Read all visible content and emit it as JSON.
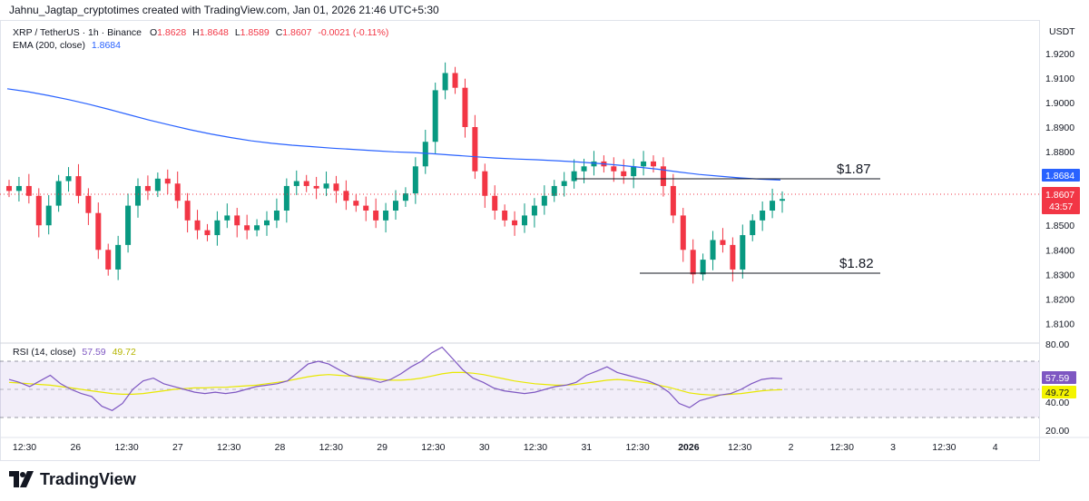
{
  "header": {
    "caption": "Jahnu_Jagtap_cryptotimes created with TradingView.com, Jan 01, 2026 21:46 UTC+5:30"
  },
  "legend": {
    "symbol": "XRP / TetherUS · 1h · Binance",
    "open_label": "O",
    "open": "1.8628",
    "high_label": "H",
    "high": "1.8648",
    "low_label": "L",
    "low": "1.8589",
    "close_label": "C",
    "close": "1.8607",
    "change": "-0.0021 (-0.11%)",
    "ema_label": "EMA (200, close)",
    "ema_value": "1.8684",
    "rsi_label": "RSI (14, close)",
    "rsi_value": "57.59",
    "rsi_ma_value": "49.72"
  },
  "axis": {
    "currency": "USDT",
    "price_ticks": [
      "1.9200",
      "1.9100",
      "1.9000",
      "1.8900",
      "1.8800",
      "1.8500",
      "1.8400",
      "1.8300",
      "1.8200",
      "1.8100"
    ],
    "rsi_ticks": [
      "80.00",
      "40.00",
      "20.00"
    ],
    "time_ticks": [
      "12:30",
      "26",
      "12:30",
      "27",
      "12:30",
      "28",
      "12:30",
      "29",
      "12:30",
      "30",
      "12:30",
      "31",
      "12:30",
      "2026",
      "12:30",
      "2",
      "12:30",
      "3",
      "12:30",
      "4"
    ]
  },
  "badges": {
    "ema_price": "1.8684",
    "last_price": "1.8607",
    "countdown": "43:57",
    "rsi": "57.59",
    "rsi_ma": "49.72"
  },
  "annotations": {
    "resistance_label": "$1.87",
    "support_label": "$1.82"
  },
  "colors": {
    "up": "#089981",
    "down": "#f23645",
    "ema": "#2962ff",
    "rsi": "#7e57c2",
    "rsi_ma": "#e8e800",
    "rsi_band": "#7e57c2"
  },
  "chart_data": {
    "type": "candlestick",
    "title": "XRP / TetherUS · 1h · Binance",
    "ylim": [
      1.805,
      1.924
    ],
    "x_ticks": [
      "12:30",
      "26",
      "12:30",
      "27",
      "12:30",
      "28",
      "12:30",
      "29",
      "12:30",
      "30",
      "12:30",
      "31",
      "12:30",
      "2026",
      "12:30",
      "2",
      "12:30",
      "3",
      "12:30",
      "4"
    ],
    "price_series": [
      1.864,
      1.866,
      1.862,
      1.85,
      1.858,
      1.868,
      1.87,
      1.862,
      1.855,
      1.84,
      1.832,
      1.842,
      1.858,
      1.866,
      1.864,
      1.869,
      1.867,
      1.86,
      1.852,
      1.848,
      1.846,
      1.852,
      1.854,
      1.85,
      1.848,
      1.85,
      1.852,
      1.856,
      1.866,
      1.868,
      1.866,
      1.865,
      1.867,
      1.864,
      1.86,
      1.858,
      1.856,
      1.852,
      1.856,
      1.86,
      1.863,
      1.874,
      1.884,
      1.905,
      1.912,
      1.906,
      1.89,
      1.872,
      1.862,
      1.856,
      1.852,
      1.85,
      1.854,
      1.858,
      1.862,
      1.866,
      1.868,
      1.872,
      1.874,
      1.876,
      1.874,
      1.872,
      1.87,
      1.874,
      1.876,
      1.874,
      1.866,
      1.854,
      1.84,
      1.83,
      1.836,
      1.844,
      1.842,
      1.832,
      1.846,
      1.852,
      1.856,
      1.86,
      1.8607
    ],
    "ema_series": [
      1.9056,
      1.9044,
      1.9029,
      1.9012,
      1.8993,
      1.8972,
      1.895,
      1.8928,
      1.8908,
      1.8889,
      1.8872,
      1.8857,
      1.8844,
      1.8834,
      1.8826,
      1.882,
      1.8814,
      1.8809,
      1.8804,
      1.8799,
      1.8796,
      1.8791,
      1.8785,
      1.8779,
      1.8774,
      1.877,
      1.8767,
      1.8763,
      1.8758,
      1.8752,
      1.8745,
      1.8737,
      1.8728,
      1.8717,
      1.8707,
      1.87,
      1.8693,
      1.8688,
      1.8684
    ],
    "rsi_series": [
      57,
      55,
      52,
      56,
      60,
      54,
      50,
      47,
      45,
      38,
      35,
      40,
      50,
      56,
      58,
      54,
      52,
      50,
      48,
      47,
      48,
      47,
      48,
      50,
      52,
      53,
      54,
      56,
      62,
      68,
      70,
      68,
      64,
      60,
      58,
      57,
      55,
      57,
      61,
      66,
      70,
      76,
      80,
      72,
      64,
      58,
      55,
      51,
      49,
      48,
      47,
      48,
      50,
      52,
      53,
      55,
      60,
      63,
      66,
      62,
      60,
      58,
      56,
      53,
      48,
      40,
      37,
      42,
      44,
      46,
      47,
      50,
      54,
      57,
      58,
      57.59
    ],
    "rsi_ma_series": [
      55,
      54.5,
      54,
      53.5,
      53,
      52,
      51,
      50,
      49,
      48,
      47,
      46.5,
      46.5,
      47,
      48,
      49,
      50,
      50.5,
      51,
      51,
      51.5,
      51.5,
      52,
      52.5,
      53,
      54,
      55,
      56,
      57.5,
      59,
      60,
      60.5,
      60,
      59.5,
      59,
      58,
      57,
      56.5,
      56.5,
      57,
      58,
      59.5,
      61,
      62,
      62,
      61.5,
      60.5,
      59,
      57.5,
      56,
      55,
      54,
      53.5,
      53,
      53,
      53.5,
      54.5,
      55.5,
      56.5,
      57,
      56.5,
      55.5,
      54.5,
      53,
      51.5,
      49.5,
      47.5,
      46.5,
      46,
      46,
      46.5,
      47,
      48,
      49,
      49.5,
      49.72
    ],
    "rsi_bands": [
      30,
      70
    ],
    "levels": [
      {
        "label": "$1.87",
        "value": 1.8695
      },
      {
        "label": "$1.82",
        "value": 1.8285
      }
    ]
  }
}
